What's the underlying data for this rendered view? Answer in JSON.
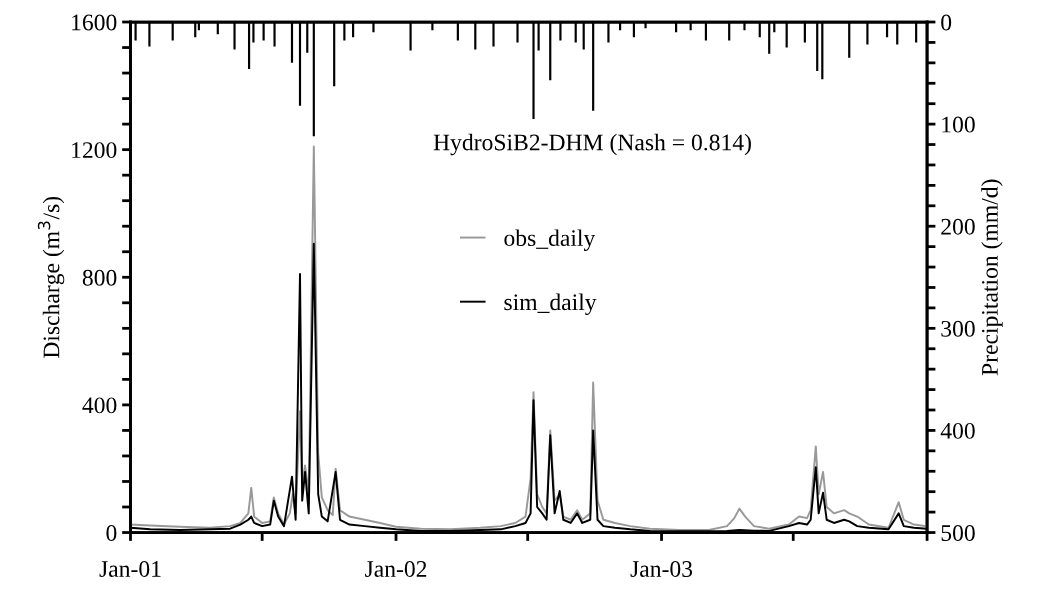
{
  "chart_data": {
    "type": "line",
    "annotations": [
      "HydroSiB2-DHM (Nash = 0.814)"
    ],
    "ylabel": "Discharge (m$^{3}$/s)",
    "y2label": "Precipitation (mm/d)",
    "xlim": [
      "2001-01-01",
      "2004-01-01"
    ],
    "xticks": [
      {
        "value": "2001-01-01",
        "label": "Jan-01"
      },
      {
        "value": "2001-07-01",
        "label": null
      },
      {
        "value": "2002-01-01",
        "label": "Jan-02"
      },
      {
        "value": "2002-07-01",
        "label": null
      },
      {
        "value": "2003-01-01",
        "label": "Jan-03"
      },
      {
        "value": "2003-07-01",
        "label": null
      },
      {
        "value": "2004-01-01",
        "label": null
      }
    ],
    "ylim": [
      0,
      1600
    ],
    "yticks": [
      0,
      {
        "value": 80,
        "label": null
      },
      {
        "value": 160,
        "label": null
      },
      {
        "value": 240,
        "label": null
      },
      {
        "value": 320,
        "label": null
      },
      400,
      {
        "value": 480,
        "label": null
      },
      {
        "value": 560,
        "label": null
      },
      {
        "value": 640,
        "label": null
      },
      {
        "value": 720,
        "label": null
      },
      800,
      {
        "value": 880,
        "label": null
      },
      {
        "value": 960,
        "label": null
      },
      {
        "value": 1040,
        "label": null
      },
      {
        "value": 1120,
        "label": null
      },
      1200,
      {
        "value": 1280,
        "label": null
      },
      {
        "value": 1360,
        "label": null
      },
      {
        "value": 1440,
        "label": null
      },
      {
        "value": 1520,
        "label": null
      },
      1600
    ],
    "y2lim": [
      500,
      0
    ],
    "y2ticks": [
      0,
      {
        "value": 20,
        "label": null
      },
      {
        "value": 40,
        "label": null
      },
      {
        "value": 60,
        "label": null
      },
      {
        "value": 80,
        "label": null
      },
      100,
      {
        "value": 120,
        "label": null
      },
      {
        "value": 140,
        "label": null
      },
      {
        "value": 160,
        "label": null
      },
      {
        "value": 180,
        "label": null
      },
      200,
      {
        "value": 220,
        "label": null
      },
      {
        "value": 240,
        "label": null
      },
      {
        "value": 260,
        "label": null
      },
      {
        "value": 280,
        "label": null
      },
      300,
      {
        "value": 320,
        "label": null
      },
      {
        "value": 340,
        "label": null
      },
      {
        "value": 360,
        "label": null
      },
      {
        "value": 380,
        "label": null
      },
      400,
      {
        "value": 420,
        "label": null
      },
      {
        "value": 440,
        "label": null
      },
      {
        "value": 460,
        "label": null
      },
      {
        "value": 480,
        "label": null
      },
      500
    ],
    "legend": "center",
    "grid": false,
    "series": [
      {
        "type": "bar",
        "axis": "y2",
        "color": "#000000",
        "x": [
          "2001-01-08",
          "2001-01-27",
          "2001-02-28",
          "2001-03-31",
          "2001-04-05",
          "2001-05-01",
          "2001-05-24",
          "2001-06-13",
          "2001-06-19",
          "2001-07-03",
          "2001-07-18",
          "2001-08-11",
          "2001-08-22",
          "2001-09-01",
          "2001-09-10",
          "2001-10-08",
          "2001-10-22",
          "2001-11-03",
          "2001-12-01",
          "2002-01-21",
          "2002-02-20",
          "2002-03-27",
          "2002-04-20",
          "2002-05-15",
          "2002-06-17",
          "2002-07-09",
          "2002-07-16",
          "2002-08-01",
          "2002-08-15",
          "2002-09-05",
          "2002-09-16",
          "2002-09-29",
          "2002-10-20",
          "2002-11-05",
          "2002-11-24",
          "2002-12-10",
          "2003-01-21",
          "2003-02-10",
          "2003-03-03",
          "2003-04-04",
          "2003-04-25",
          "2003-05-16",
          "2003-05-29",
          "2003-06-05",
          "2003-06-22",
          "2003-07-17",
          "2003-08-03",
          "2003-08-10",
          "2003-09-16",
          "2003-10-11",
          "2003-11-07",
          "2003-11-21",
          "2003-12-17"
        ],
        "values": [
          18,
          24,
          18,
          15,
          8,
          12,
          27,
          46,
          20,
          18,
          24,
          40,
          82,
          30,
          112,
          63,
          18,
          15,
          10,
          28,
          8,
          18,
          27,
          24,
          20,
          95,
          28,
          57,
          18,
          20,
          27,
          87,
          20,
          8,
          15,
          6,
          10,
          8,
          18,
          18,
          8,
          15,
          31,
          10,
          25,
          20,
          48,
          56,
          35,
          22,
          15,
          22,
          20
        ]
      },
      {
        "axis": "y",
        "name": "obs_daily",
        "color": "#999999",
        "x": [
          "2001-01-01",
          "2001-01-28",
          "2001-03-10",
          "2001-04-20",
          "2001-05-18",
          "2001-06-01",
          "2001-06-12",
          "2001-06-16",
          "2001-06-20",
          "2001-07-01",
          "2001-07-12",
          "2001-07-17",
          "2001-07-23",
          "2001-07-31",
          "2001-08-08",
          "2001-08-12",
          "2001-08-16",
          "2001-08-22",
          "2001-08-25",
          "2001-08-29",
          "2001-09-03",
          "2001-09-10",
          "2001-09-16",
          "2001-09-21",
          "2001-09-29",
          "2001-10-06",
          "2001-10-10",
          "2001-10-16",
          "2001-10-29",
          "2001-11-19",
          "2001-12-10",
          "2002-01-01",
          "2002-02-04",
          "2002-03-17",
          "2002-04-27",
          "2002-05-25",
          "2002-06-14",
          "2002-06-28",
          "2002-07-05",
          "2002-07-09",
          "2002-07-14",
          "2002-07-21",
          "2002-07-27",
          "2002-08-01",
          "2002-08-07",
          "2002-08-14",
          "2002-08-19",
          "2002-08-29",
          "2002-09-07",
          "2002-09-14",
          "2002-09-25",
          "2002-09-29",
          "2002-10-05",
          "2002-10-13",
          "2002-10-29",
          "2002-11-19",
          "2002-12-16",
          "2003-01-25",
          "2003-03-07",
          "2003-04-01",
          "2003-04-11",
          "2003-04-18",
          "2003-04-26",
          "2003-05-08",
          "2003-05-29",
          "2003-06-25",
          "2003-07-09",
          "2003-07-20",
          "2003-07-25",
          "2003-08-01",
          "2003-08-05",
          "2003-08-11",
          "2003-08-16",
          "2003-08-26",
          "2003-09-09",
          "2003-09-16",
          "2003-09-27",
          "2003-10-13",
          "2003-11-09",
          "2003-11-23",
          "2003-11-30",
          "2003-12-14",
          "2003-12-30"
        ],
        "values": [
          25,
          22,
          18,
          15,
          20,
          30,
          60,
          140,
          50,
          30,
          35,
          110,
          60,
          25,
          60,
          120,
          60,
          380,
          150,
          210,
          120,
          1210,
          250,
          110,
          70,
          55,
          200,
          70,
          50,
          40,
          30,
          18,
          12,
          10,
          15,
          20,
          30,
          50,
          170,
          440,
          120,
          80,
          60,
          320,
          100,
          120,
          50,
          40,
          70,
          40,
          60,
          470,
          100,
          40,
          30,
          20,
          12,
          8,
          8,
          20,
          45,
          75,
          50,
          20,
          12,
          25,
          50,
          45,
          70,
          270,
          120,
          190,
          80,
          60,
          70,
          60,
          50,
          25,
          15,
          95,
          40,
          25,
          20
        ]
      },
      {
        "axis": "y",
        "name": "sim_daily",
        "color": "#000000",
        "x": [
          "2001-01-01",
          "2001-01-28",
          "2001-03-10",
          "2001-04-20",
          "2001-05-18",
          "2001-06-01",
          "2001-06-12",
          "2001-06-16",
          "2001-06-20",
          "2001-07-01",
          "2001-07-12",
          "2001-07-17",
          "2001-07-23",
          "2001-07-31",
          "2001-08-11",
          "2001-08-16",
          "2001-08-22",
          "2001-08-25",
          "2001-08-29",
          "2001-09-03",
          "2001-09-10",
          "2001-09-16",
          "2001-09-21",
          "2001-09-29",
          "2001-10-10",
          "2001-10-16",
          "2001-10-29",
          "2001-11-19",
          "2001-12-10",
          "2002-01-01",
          "2002-02-04",
          "2002-03-17",
          "2002-04-27",
          "2002-05-25",
          "2002-06-14",
          "2002-06-28",
          "2002-07-05",
          "2002-07-09",
          "2002-07-14",
          "2002-07-21",
          "2002-07-27",
          "2002-08-01",
          "2002-08-07",
          "2002-08-14",
          "2002-08-19",
          "2002-08-29",
          "2002-09-07",
          "2002-09-14",
          "2002-09-25",
          "2002-09-29",
          "2002-10-05",
          "2002-10-13",
          "2002-10-29",
          "2002-11-19",
          "2002-12-16",
          "2003-01-25",
          "2003-03-07",
          "2003-04-01",
          "2003-04-18",
          "2003-05-08",
          "2003-05-29",
          "2003-06-25",
          "2003-07-09",
          "2003-07-20",
          "2003-07-25",
          "2003-08-01",
          "2003-08-05",
          "2003-08-11",
          "2003-08-16",
          "2003-08-26",
          "2003-09-09",
          "2003-09-16",
          "2003-09-27",
          "2003-10-13",
          "2003-11-09",
          "2003-11-23",
          "2003-11-30",
          "2003-12-14",
          "2003-12-30"
        ],
        "values": [
          15,
          10,
          8,
          10,
          12,
          25,
          40,
          50,
          30,
          20,
          25,
          100,
          50,
          20,
          175,
          40,
          810,
          100,
          190,
          60,
          905,
          120,
          50,
          35,
          190,
          40,
          25,
          20,
          15,
          10,
          5,
          5,
          8,
          10,
          20,
          30,
          60,
          415,
          80,
          60,
          40,
          305,
          60,
          130,
          40,
          30,
          60,
          30,
          40,
          320,
          40,
          20,
          15,
          10,
          5,
          4,
          4,
          5,
          8,
          6,
          5,
          20,
          30,
          25,
          40,
          205,
          60,
          125,
          40,
          30,
          40,
          35,
          20,
          15,
          10,
          60,
          20,
          15,
          12
        ]
      }
    ]
  }
}
